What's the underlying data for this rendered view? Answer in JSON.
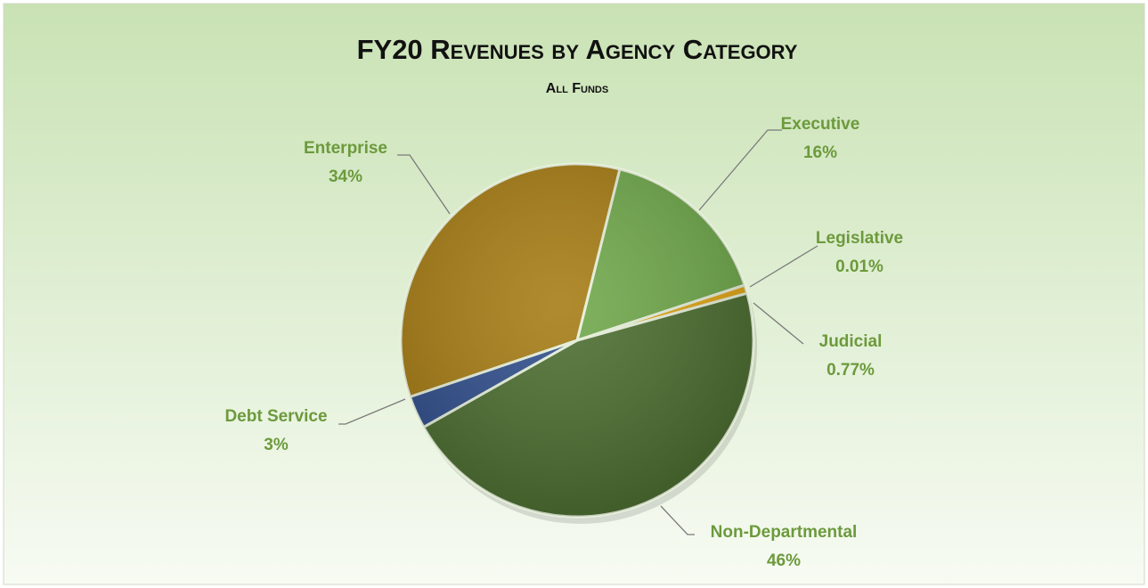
{
  "chart_data": {
    "type": "pie",
    "title": "FY20 Revenues by Agency Category",
    "subtitle": "All Funds",
    "categories": [
      "Executive",
      "Legislative",
      "Judicial",
      "Non-Departmental",
      "Debt Service",
      "Enterprise"
    ],
    "values": [
      16,
      0.01,
      0.77,
      46,
      3,
      34
    ],
    "value_labels": [
      "16%",
      "0.01%",
      "0.77%",
      "46%",
      "3%",
      "34%"
    ],
    "colors": [
      "#6fa84a",
      "#f2c418",
      "#e3a514",
      "#4b6d2f",
      "#2f4e8c",
      "#a67b12"
    ]
  }
}
